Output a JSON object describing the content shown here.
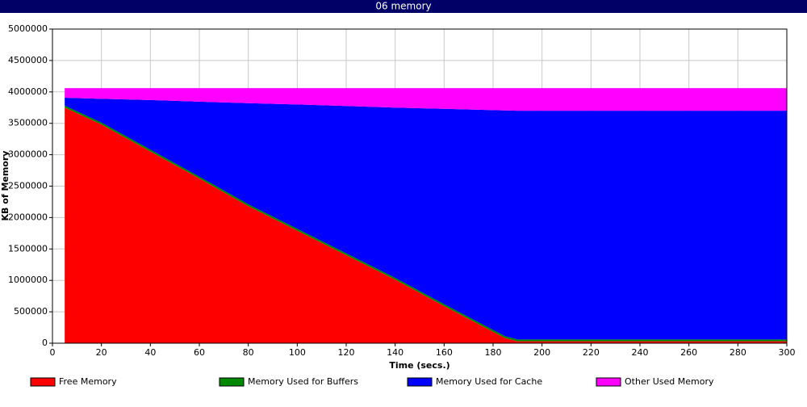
{
  "chart_data": {
    "type": "stacked_area",
    "title": "06 memory",
    "x_label": "Time (secs.)",
    "y_label": "KB of Memory",
    "x": [
      5,
      20,
      40,
      60,
      80,
      100,
      120,
      140,
      160,
      180,
      185,
      190,
      200,
      220,
      240,
      260,
      280,
      300
    ],
    "series": [
      {
        "name": "Free Memory",
        "color": "#ff0000",
        "values": [
          3750000,
          3480000,
          3050000,
          2620000,
          2180000,
          1790000,
          1400000,
          1010000,
          590000,
          180000,
          80000,
          30000,
          30000,
          30000,
          30000,
          30000,
          30000,
          30000
        ]
      },
      {
        "name": "Memory Used for Buffers",
        "color": "#008800",
        "values": [
          30000,
          30000,
          30000,
          30000,
          30000,
          30000,
          30000,
          30000,
          30000,
          30000,
          30000,
          30000,
          30000,
          30000,
          30000,
          30000,
          30000,
          30000
        ]
      },
      {
        "name": "Memory Used for Cache",
        "color": "#0000ff",
        "values": [
          127000,
          380000,
          790000,
          1195000,
          1610000,
          1980000,
          2345000,
          2710000,
          3110000,
          3500000,
          3595000,
          3640000,
          3640000,
          3640000,
          3640000,
          3640000,
          3640000,
          3640000
        ]
      },
      {
        "name": "Other Used Memory",
        "color": "#ff00ff",
        "values": [
          153000,
          170000,
          190000,
          215000,
          240000,
          260000,
          285000,
          310000,
          330000,
          350000,
          355000,
          360000,
          360000,
          360000,
          360000,
          360000,
          360000,
          360000
        ]
      }
    ],
    "xlim": [
      0,
      300
    ],
    "xticks": [
      0,
      20,
      40,
      60,
      80,
      100,
      120,
      140,
      160,
      180,
      200,
      220,
      240,
      260,
      280,
      300
    ],
    "ylim": [
      0,
      5000000
    ],
    "yticks": [
      0,
      500000,
      1000000,
      1500000,
      2000000,
      2500000,
      3000000,
      3500000,
      4000000,
      4500000,
      5000000
    ],
    "grid": true
  }
}
